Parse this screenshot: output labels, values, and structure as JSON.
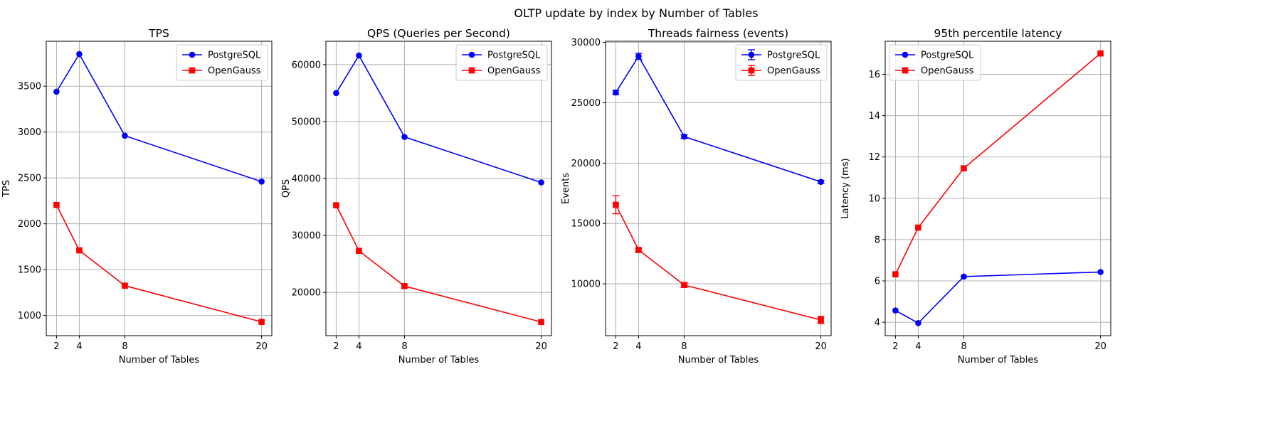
{
  "suptitle": "OLTP update by index by Number of Tables",
  "colors": {
    "PostgreSQL": "#0000ff",
    "OpenGauss": "#ff0000",
    "grid": "#b0b0b0"
  },
  "chart_data": [
    {
      "type": "line",
      "title": "TPS",
      "xlabel": "Number of Tables",
      "ylabel": "TPS",
      "x": [
        2,
        4,
        8,
        20
      ],
      "xticks": [
        2,
        4,
        8,
        20
      ],
      "xlim": [
        1.1,
        20.9
      ],
      "yticks": [
        1000,
        1500,
        2000,
        2500,
        3000,
        3500
      ],
      "ylim": [
        780,
        3990
      ],
      "grid": true,
      "legend": "top-right",
      "series": [
        {
          "name": "PostgreSQL",
          "marker": "circle",
          "values": [
            3440,
            3850,
            2960,
            2460
          ]
        },
        {
          "name": "OpenGauss",
          "marker": "square",
          "values": [
            2205,
            1710,
            1325,
            930
          ]
        }
      ]
    },
    {
      "type": "line",
      "title": "QPS (Queries per Second)",
      "xlabel": "Number of Tables",
      "ylabel": "QPS",
      "x": [
        2,
        4,
        8,
        20
      ],
      "xticks": [
        2,
        4,
        8,
        20
      ],
      "xlim": [
        1.1,
        20.9
      ],
      "yticks": [
        20000,
        30000,
        40000,
        50000,
        60000
      ],
      "ylim": [
        12400,
        64100
      ],
      "grid": true,
      "legend": "top-right",
      "series": [
        {
          "name": "PostgreSQL",
          "marker": "circle",
          "values": [
            55000,
            61600,
            47300,
            39300
          ]
        },
        {
          "name": "OpenGauss",
          "marker": "square",
          "values": [
            35300,
            27300,
            21100,
            14800
          ]
        }
      ]
    },
    {
      "type": "line",
      "title": "Threads fairness (events)",
      "xlabel": "Number of Tables",
      "ylabel": "Events",
      "x": [
        2,
        4,
        8,
        20
      ],
      "xticks": [
        2,
        4,
        8,
        20
      ],
      "xlim": [
        1.1,
        20.9
      ],
      "yticks": [
        10000,
        15000,
        20000,
        25000,
        30000
      ],
      "ylim": [
        5700,
        30100
      ],
      "grid": true,
      "legend": "top-right",
      "error_bars": true,
      "series": [
        {
          "name": "PostgreSQL",
          "marker": "circle",
          "values": [
            25850,
            28850,
            22200,
            18450
          ],
          "errors": [
            180,
            250,
            150,
            120
          ]
        },
        {
          "name": "OpenGauss",
          "marker": "square",
          "values": [
            16550,
            12800,
            9900,
            7000
          ],
          "errors": [
            750,
            150,
            180,
            300
          ]
        }
      ]
    },
    {
      "type": "line",
      "title": "95th percentile latency",
      "xlabel": "Number of Tables",
      "ylabel": "Latency (ms)",
      "x": [
        2,
        4,
        8,
        20
      ],
      "xticks": [
        2,
        4,
        8,
        20
      ],
      "xlim": [
        1.1,
        20.9
      ],
      "yticks": [
        4,
        6,
        8,
        10,
        12,
        14,
        16
      ],
      "ylim": [
        3.35,
        17.6
      ],
      "grid": true,
      "legend": "top-left",
      "series": [
        {
          "name": "PostgreSQL",
          "marker": "circle",
          "values": [
            4.57,
            3.96,
            6.21,
            6.43
          ]
        },
        {
          "name": "OpenGauss",
          "marker": "square",
          "values": [
            6.32,
            8.58,
            11.45,
            17.01
          ]
        }
      ]
    }
  ]
}
